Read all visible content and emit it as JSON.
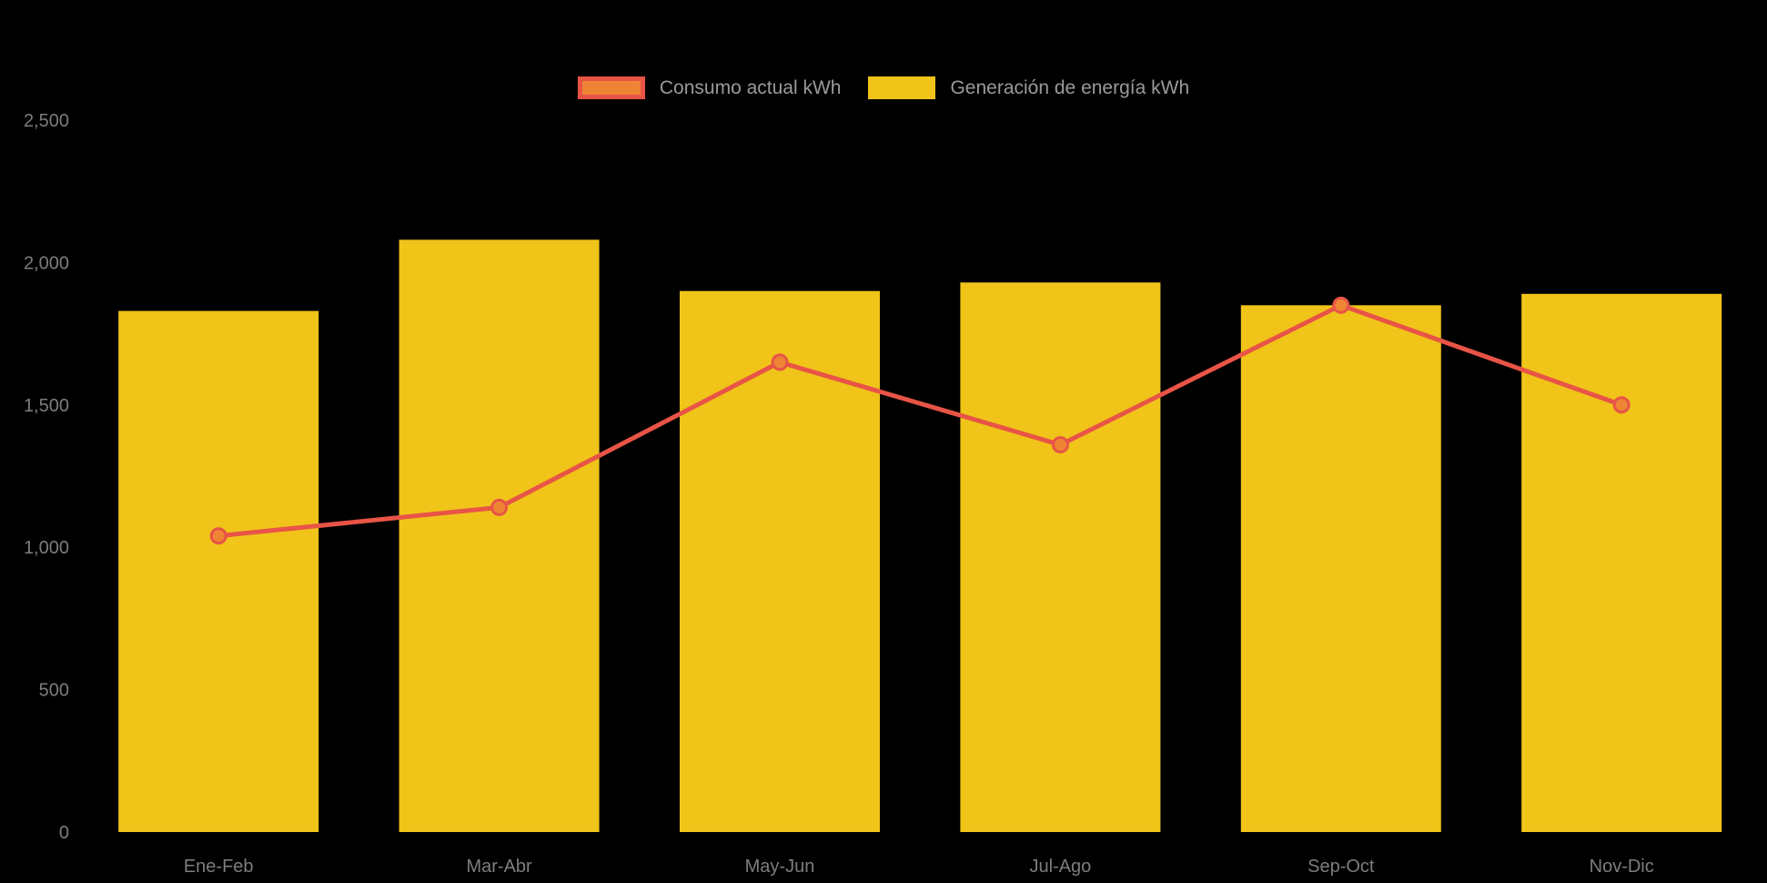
{
  "background_color": "#000000",
  "chart_data": {
    "type": "bar+line combo",
    "title": "",
    "categories": [
      "Ene-Feb",
      "Mar-Abr",
      "May-Jun",
      "Jul-Ago",
      "Sep-Oct",
      "Nov-Dic"
    ],
    "series": [
      {
        "name": "Consumo actual kWh",
        "type": "line",
        "line_color": "#E85446",
        "point_fill": "#EE8434",
        "values": [
          1040,
          1140,
          1650,
          1360,
          1850,
          1500
        ]
      },
      {
        "name": "Generación de energía kWh",
        "type": "bar",
        "color": "#F0C419",
        "values": [
          1830,
          2080,
          1900,
          1930,
          1850,
          1890
        ]
      }
    ],
    "ylim": [
      0,
      2500
    ],
    "yticks": [
      0,
      500,
      1000,
      1500,
      2000,
      2500
    ],
    "ytick_labels": [
      "0",
      "500",
      "1,000",
      "1,500",
      "2,000",
      "2,500"
    ],
    "grid": false,
    "legend_position": "top-center",
    "tick_text_color": "#7d7d7d",
    "legend_text_color": "#9a9a9a"
  }
}
